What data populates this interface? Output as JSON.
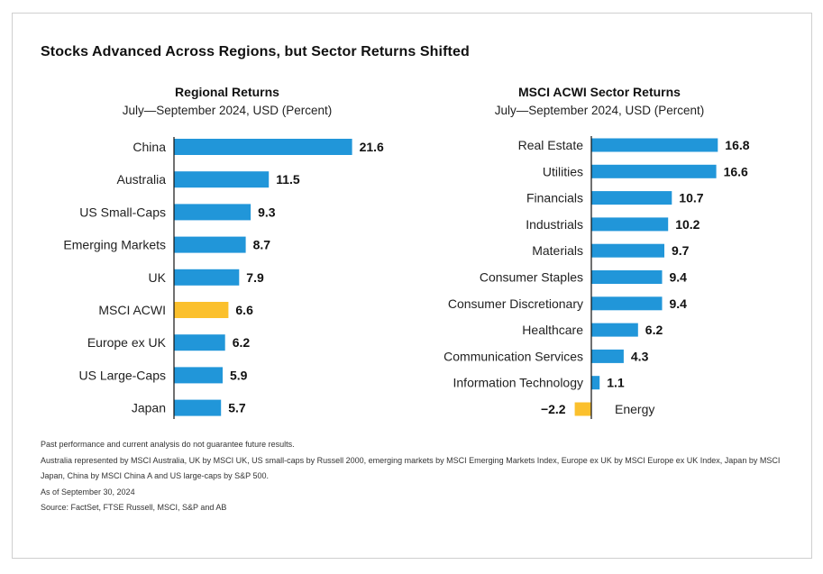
{
  "page": {
    "title": "Stocks Advanced Across Regions, but Sector Returns Shifted"
  },
  "colors": {
    "bar": "#2196d9",
    "highlight": "#fbc02d",
    "axis": "#111111"
  },
  "chart_data": [
    {
      "type": "bar",
      "orientation": "horizontal",
      "title": "Regional Returns",
      "subtitle": "July—September 2024, USD (Percent)",
      "categories": [
        "China",
        "Australia",
        "US Small-Caps",
        "Emerging Markets",
        "UK",
        "MSCI ACWI",
        "Europe ex UK",
        "US Large-Caps",
        "Japan"
      ],
      "values": [
        21.6,
        11.5,
        9.3,
        8.7,
        7.9,
        6.6,
        6.2,
        5.9,
        5.7
      ],
      "value_labels": [
        "21.6",
        "11.5",
        "9.3",
        "8.7",
        "7.9",
        "6.6",
        "6.2",
        "5.9",
        "5.7"
      ],
      "highlight": [
        "MSCI ACWI"
      ]
    },
    {
      "type": "bar",
      "orientation": "horizontal",
      "title": "MSCI ACWI Sector Returns",
      "subtitle": "July—September 2024, USD (Percent)",
      "categories": [
        "Real Estate",
        "Utilities",
        "Financials",
        "Industrials",
        "Materials",
        "Consumer Staples",
        "Consumer Discretionary",
        "Healthcare",
        "Communication Services",
        "Information Technology",
        "Energy"
      ],
      "values": [
        16.8,
        16.6,
        10.7,
        10.2,
        9.7,
        9.4,
        9.4,
        6.2,
        4.3,
        1.1,
        -2.2
      ],
      "value_labels": [
        "16.8",
        "16.6",
        "10.7",
        "10.2",
        "9.7",
        "9.4",
        "9.4",
        "6.2",
        "4.3",
        "1.1",
        "−2.2"
      ],
      "highlight": [
        "Energy"
      ]
    }
  ],
  "notes": {
    "disclaimer": "Past performance and current analysis do not guarantee future results.",
    "indices": "Australia represented by MSCI Australia, UK by MSCI UK, US small-caps by Russell 2000, emerging markets by MSCI Emerging Markets Index, Europe ex UK by MSCI Europe ex UK Index, Japan by MSCI Japan, China by MSCI China A and US large-caps by S&P 500.",
    "as_of": "As of September 30, 2024",
    "source": "Source: FactSet, FTSE Russell, MSCI, S&P and AB"
  }
}
